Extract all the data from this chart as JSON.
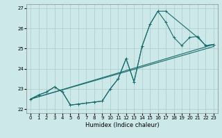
{
  "xlabel": "Humidex (Indice chaleur)",
  "bg_color": "#cce8e8",
  "grid_color": "#aacccc",
  "line_color": "#1a6b6b",
  "xlim": [
    -0.5,
    23.5
  ],
  "ylim": [
    21.8,
    27.2
  ],
  "yticks": [
    22,
    23,
    24,
    25,
    26,
    27
  ],
  "xticks": [
    0,
    1,
    2,
    3,
    4,
    5,
    6,
    7,
    8,
    9,
    10,
    11,
    12,
    13,
    14,
    15,
    16,
    17,
    18,
    19,
    20,
    21,
    22,
    23
  ],
  "line1_x": [
    0,
    1,
    2,
    3,
    4,
    5,
    6,
    7,
    8,
    9,
    10,
    11,
    12,
    13,
    14,
    15,
    16,
    17,
    21,
    22,
    23
  ],
  "line1_y": [
    22.5,
    22.7,
    22.85,
    23.1,
    22.85,
    22.2,
    22.25,
    22.3,
    22.35,
    22.4,
    23.0,
    23.5,
    24.5,
    23.35,
    25.1,
    26.2,
    26.85,
    26.85,
    25.55,
    25.15,
    25.2
  ],
  "line2_x": [
    0,
    1,
    2,
    3,
    4,
    5,
    6,
    7,
    8,
    9,
    10,
    11,
    12,
    13,
    14,
    15,
    16,
    17,
    18,
    19,
    20,
    21,
    22,
    23
  ],
  "line2_y": [
    22.5,
    22.7,
    22.85,
    23.1,
    22.85,
    22.2,
    22.25,
    22.3,
    22.35,
    22.4,
    23.0,
    23.5,
    24.5,
    23.35,
    25.1,
    26.2,
    26.85,
    26.3,
    25.55,
    25.15,
    25.55,
    25.6,
    25.15,
    25.2
  ],
  "line3_x": [
    0,
    23
  ],
  "line3_y": [
    22.5,
    25.1
  ],
  "line4_x": [
    0,
    23
  ],
  "line4_y": [
    22.5,
    25.2
  ]
}
